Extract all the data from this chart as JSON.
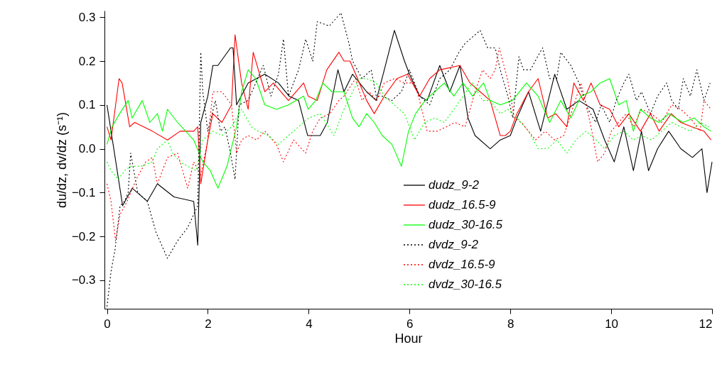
{
  "chart_data": {
    "type": "line",
    "xlabel": "Hour",
    "ylabel": "du/dz, dv/dz (s⁻¹)",
    "xlim": [
      -0.05,
      12
    ],
    "xticks": [
      0,
      2,
      4,
      6,
      8,
      10,
      12
    ],
    "ylim": [
      -0.365,
      0.315
    ],
    "yticks": [
      -0.3,
      -0.2,
      -0.1,
      {
        "value": 0,
        "label": "0.0"
      },
      0.1,
      0.2,
      0.3
    ],
    "grid": false,
    "legend": "bottom right",
    "marker": "none",
    "series": [
      {
        "name": "dudz_9-2",
        "color": "#000000",
        "line_style": "solid",
        "x": [
          0,
          0.31,
          0.5,
          0.8,
          1.0,
          1.33,
          1.72,
          1.8,
          1.86,
          2.0,
          2.1,
          2.2,
          2.45,
          2.5,
          2.57,
          2.8,
          3.13,
          3.4,
          3.61,
          3.8,
          3.98,
          4.23,
          4.37,
          4.58,
          4.7,
          4.87,
          5.15,
          5.34,
          5.5,
          5.7,
          5.9,
          6.0,
          6.2,
          6.35,
          6.6,
          6.8,
          7.0,
          7.16,
          7.3,
          7.6,
          7.8,
          8.0,
          8.13,
          8.36,
          8.6,
          8.88,
          9.12,
          9.36,
          9.64,
          9.87,
          10.06,
          10.25,
          10.44,
          10.6,
          10.74,
          10.92,
          11.14,
          11.38,
          11.61,
          11.8,
          11.9,
          12.0
        ],
        "values": [
          0.1,
          -0.13,
          -0.09,
          -0.12,
          -0.08,
          -0.11,
          -0.12,
          -0.22,
          0.06,
          0.12,
          0.19,
          0.19,
          0.23,
          0.23,
          0.1,
          0.15,
          0.17,
          0.15,
          0.12,
          0.11,
          0.03,
          0.03,
          0.06,
          0.18,
          0.13,
          0.17,
          0.13,
          0.11,
          0.18,
          0.27,
          0.2,
          0.17,
          0.12,
          0.11,
          0.19,
          0.13,
          0.19,
          0.07,
          0.03,
          0.0,
          0.02,
          0.03,
          0.07,
          0.13,
          0.04,
          0.17,
          0.09,
          0.11,
          0.09,
          0.02,
          -0.03,
          0.05,
          -0.05,
          0.04,
          -0.05,
          0.0,
          0.04,
          0.0,
          -0.02,
          0.0,
          -0.1,
          -0.03
        ]
      },
      {
        "name": "dudz_16.5-9",
        "color": "#ff0000",
        "line_style": "solid",
        "x": [
          0,
          0.08,
          0.24,
          0.3,
          0.45,
          0.55,
          0.9,
          1.2,
          1.45,
          1.72,
          1.8,
          1.86,
          2.0,
          2.1,
          2.28,
          2.47,
          2.54,
          2.67,
          2.8,
          2.9,
          3.13,
          3.3,
          3.6,
          3.9,
          3.99,
          4.17,
          4.36,
          4.6,
          4.7,
          4.82,
          4.97,
          5.15,
          5.3,
          5.5,
          5.75,
          5.96,
          6.2,
          6.4,
          6.6,
          7.0,
          7.2,
          7.4,
          7.6,
          7.8,
          7.9,
          8.0,
          8.13,
          8.36,
          8.55,
          8.74,
          8.9,
          9.12,
          9.26,
          9.45,
          9.6,
          9.78,
          9.97,
          10.15,
          10.35,
          10.58,
          10.78,
          10.95,
          11.19,
          11.38,
          11.6,
          11.84,
          11.98
        ],
        "values": [
          0.05,
          0.02,
          0.16,
          0.15,
          0.05,
          0.06,
          0.04,
          0.02,
          0.04,
          0.04,
          0.05,
          -0.08,
          0.02,
          0.08,
          0.06,
          0.1,
          0.26,
          0.15,
          0.09,
          0.22,
          0.13,
          0.15,
          0.11,
          0.15,
          0.12,
          0.11,
          0.18,
          0.22,
          0.2,
          0.2,
          0.16,
          0.11,
          0.08,
          0.12,
          0.16,
          0.17,
          0.12,
          0.16,
          0.18,
          0.19,
          0.15,
          0.13,
          0.11,
          0.03,
          0.03,
          0.04,
          0.08,
          0.13,
          0.16,
          0.07,
          0.08,
          0.05,
          0.15,
          0.11,
          0.15,
          0.1,
          0.09,
          0.05,
          0.08,
          0.04,
          0.08,
          0.04,
          0.08,
          0.06,
          0.05,
          0.04,
          0.02
        ]
      },
      {
        "name": "dudz_30-16.5",
        "color": "#00ff00",
        "line_style": "solid",
        "x": [
          0,
          0.1,
          0.25,
          0.42,
          0.5,
          0.7,
          0.85,
          1.0,
          1.1,
          1.2,
          1.4,
          1.72,
          1.9,
          2.05,
          2.2,
          2.38,
          2.57,
          2.67,
          2.8,
          2.95,
          3.13,
          3.36,
          3.6,
          3.9,
          3.99,
          4.14,
          4.28,
          4.46,
          4.7,
          4.87,
          5.0,
          5.15,
          5.3,
          5.46,
          5.65,
          5.84,
          5.98,
          6.12,
          6.31,
          6.5,
          6.69,
          6.88,
          7.06,
          7.25,
          7.47,
          7.6,
          7.8,
          8.04,
          8.32,
          8.55,
          8.78,
          9.0,
          9.2,
          9.4,
          9.6,
          9.78,
          9.97,
          10.15,
          10.3,
          10.44,
          10.58,
          10.78,
          10.95,
          11.14,
          11.42,
          11.65,
          11.84,
          11.98
        ],
        "values": [
          0.01,
          0.05,
          0.08,
          0.11,
          0.07,
          0.11,
          0.06,
          0.08,
          0.04,
          0.09,
          0.06,
          0.02,
          -0.03,
          -0.05,
          -0.09,
          -0.04,
          0.05,
          0.13,
          0.18,
          0.16,
          0.1,
          0.09,
          0.1,
          0.12,
          0.09,
          0.11,
          0.15,
          0.13,
          0.13,
          0.07,
          0.05,
          0.08,
          0.06,
          0.03,
          0.01,
          -0.04,
          0.04,
          0.08,
          0.11,
          0.13,
          0.15,
          0.12,
          0.15,
          0.12,
          0.15,
          0.11,
          0.1,
          0.11,
          0.15,
          0.12,
          0.06,
          0.11,
          0.07,
          0.12,
          0.13,
          0.15,
          0.16,
          0.1,
          0.11,
          0.04,
          0.09,
          0.07,
          0.06,
          0.08,
          0.06,
          0.07,
          0.05,
          0.04
        ]
      },
      {
        "name": "dvdz_9-2",
        "color": "#000000",
        "line_style": "dotted",
        "x": [
          0,
          0.08,
          0.16,
          0.26,
          0.35,
          0.42,
          0.47,
          0.61,
          0.8,
          0.97,
          1.2,
          1.4,
          1.6,
          1.8,
          1.86,
          1.9,
          2.0,
          2.15,
          2.25,
          2.34,
          2.45,
          2.54,
          2.62,
          2.8,
          3.1,
          3.25,
          3.4,
          3.5,
          3.6,
          3.8,
          3.94,
          4.08,
          4.17,
          4.41,
          4.64,
          4.8,
          4.87,
          5.06,
          5.24,
          5.34,
          5.46,
          5.65,
          5.84,
          6.0,
          6.2,
          6.4,
          6.6,
          6.8,
          6.98,
          7.1,
          7.3,
          7.4,
          7.55,
          7.7,
          7.8,
          7.95,
          8.05,
          8.17,
          8.26,
          8.4,
          8.54,
          8.64,
          8.78,
          8.92,
          9.0,
          9.2,
          9.36,
          9.54,
          9.69,
          9.8,
          9.97,
          10.1,
          10.25,
          10.35,
          10.5,
          10.6,
          10.78,
          10.92,
          11.1,
          11.2,
          11.33,
          11.43,
          11.57,
          11.7,
          11.84,
          11.96
        ],
        "values": [
          -0.36,
          -0.28,
          -0.23,
          -0.13,
          -0.12,
          -0.1,
          -0.01,
          -0.1,
          -0.12,
          -0.19,
          -0.25,
          -0.21,
          -0.18,
          -0.13,
          0.22,
          0.13,
          0.04,
          0.11,
          0.04,
          0.05,
          -0.01,
          -0.07,
          0.1,
          0.11,
          0.19,
          0.12,
          0.17,
          0.25,
          0.12,
          0.18,
          0.25,
          0.2,
          0.29,
          0.28,
          0.31,
          0.24,
          0.2,
          0.16,
          0.18,
          0.12,
          0.12,
          0.11,
          0.13,
          0.18,
          0.12,
          0.1,
          0.16,
          0.18,
          0.22,
          0.24,
          0.26,
          0.27,
          0.23,
          0.23,
          0.18,
          0.12,
          0.07,
          0.21,
          0.18,
          0.18,
          0.21,
          0.23,
          0.16,
          0.16,
          0.22,
          0.19,
          0.15,
          0.09,
          0.06,
          0.1,
          0.06,
          0.11,
          0.15,
          0.17,
          0.11,
          0.13,
          0.08,
          0.12,
          0.15,
          0.11,
          0.09,
          0.16,
          0.12,
          0.18,
          0.11,
          0.15
        ]
      },
      {
        "name": "dvdz_16.5-9",
        "color": "#ff0000",
        "line_style": "dotted",
        "x": [
          0,
          0.08,
          0.17,
          0.26,
          0.4,
          0.58,
          0.77,
          0.9,
          1.0,
          1.2,
          1.4,
          1.6,
          1.72,
          1.86,
          2.0,
          2.1,
          2.28,
          2.47,
          2.57,
          2.67,
          2.8,
          2.97,
          3.13,
          3.36,
          3.5,
          3.7,
          3.94,
          4.08,
          4.23,
          4.42,
          4.6,
          4.7,
          4.93,
          5.06,
          5.2,
          5.35,
          5.5,
          5.7,
          5.9,
          6.1,
          6.2,
          6.35,
          6.55,
          6.73,
          6.9,
          7.1,
          7.3,
          7.45,
          7.6,
          7.7,
          7.78,
          7.94,
          8.08,
          8.22,
          8.36,
          8.5,
          8.69,
          8.88,
          9.06,
          9.26,
          9.4,
          9.6,
          9.73,
          9.87,
          10.0,
          10.15,
          10.3,
          10.44,
          10.6,
          10.8,
          11.0,
          11.2,
          11.38,
          11.57,
          11.76,
          11.84,
          11.98
        ],
        "values": [
          -0.08,
          -0.12,
          -0.21,
          -0.15,
          -0.12,
          -0.07,
          -0.03,
          -0.02,
          -0.08,
          -0.02,
          -0.01,
          -0.09,
          -0.03,
          -0.06,
          0.02,
          0.13,
          0.13,
          0.1,
          -0.01,
          0.02,
          0.03,
          0.02,
          0.04,
          0.01,
          -0.03,
          0.02,
          -0.01,
          0.04,
          0.07,
          0.08,
          0.11,
          0.12,
          0.16,
          0.11,
          0.13,
          0.11,
          0.15,
          0.16,
          0.15,
          0.15,
          0.11,
          0.04,
          0.04,
          0.05,
          0.06,
          0.05,
          0.13,
          0.18,
          0.16,
          0.18,
          0.23,
          0.16,
          0.07,
          0.06,
          0.04,
          0.02,
          0.04,
          0.02,
          0.03,
          0.1,
          0.15,
          0.05,
          -0.03,
          -0.01,
          0.04,
          0.06,
          0.08,
          0.05,
          0.09,
          0.08,
          0.06,
          0.1,
          0.09,
          0.07,
          0.04,
          0.11,
          0.09
        ]
      },
      {
        "name": "dvdz_30-16.5",
        "color": "#00ff00",
        "line_style": "dotted",
        "x": [
          0,
          0.08,
          0.22,
          0.35,
          0.47,
          0.68,
          0.9,
          1.0,
          1.2,
          1.3,
          1.45,
          1.6,
          1.77,
          1.9,
          2.1,
          2.28,
          2.47,
          2.67,
          2.86,
          3.0,
          3.2,
          3.4,
          3.6,
          3.8,
          4.0,
          4.23,
          4.5,
          4.7,
          5.0,
          5.15,
          5.34,
          5.5,
          5.7,
          5.9,
          6.1,
          6.3,
          6.5,
          6.69,
          6.88,
          7.06,
          7.25,
          7.45,
          7.6,
          7.8,
          7.95,
          8.13,
          8.36,
          8.55,
          8.74,
          8.92,
          9.12,
          9.3,
          9.5,
          9.7,
          9.87,
          10.06,
          10.25,
          10.44,
          10.6,
          10.8,
          11.0,
          11.2,
          11.38,
          11.57,
          11.76,
          11.94
        ],
        "values": [
          -0.03,
          -0.05,
          -0.07,
          -0.05,
          -0.04,
          -0.04,
          -0.03,
          0.0,
          0.02,
          -0.01,
          -0.03,
          -0.04,
          -0.05,
          0.02,
          0.04,
          0.03,
          0.05,
          0.09,
          0.05,
          0.04,
          0.03,
          0.01,
          0.03,
          0.05,
          0.07,
          0.08,
          0.03,
          0.09,
          0.16,
          0.16,
          0.15,
          0.12,
          0.1,
          0.08,
          0.02,
          0.06,
          0.07,
          0.06,
          0.09,
          0.12,
          0.15,
          0.11,
          0.11,
          0.08,
          0.09,
          0.07,
          0.04,
          0.0,
          0.0,
          0.02,
          -0.01,
          0.02,
          0.04,
          0.02,
          0.0,
          0.03,
          0.04,
          0.02,
          0.03,
          0.02,
          0.04,
          0.06,
          0.05,
          0.04,
          0.06,
          0.05
        ]
      }
    ]
  }
}
